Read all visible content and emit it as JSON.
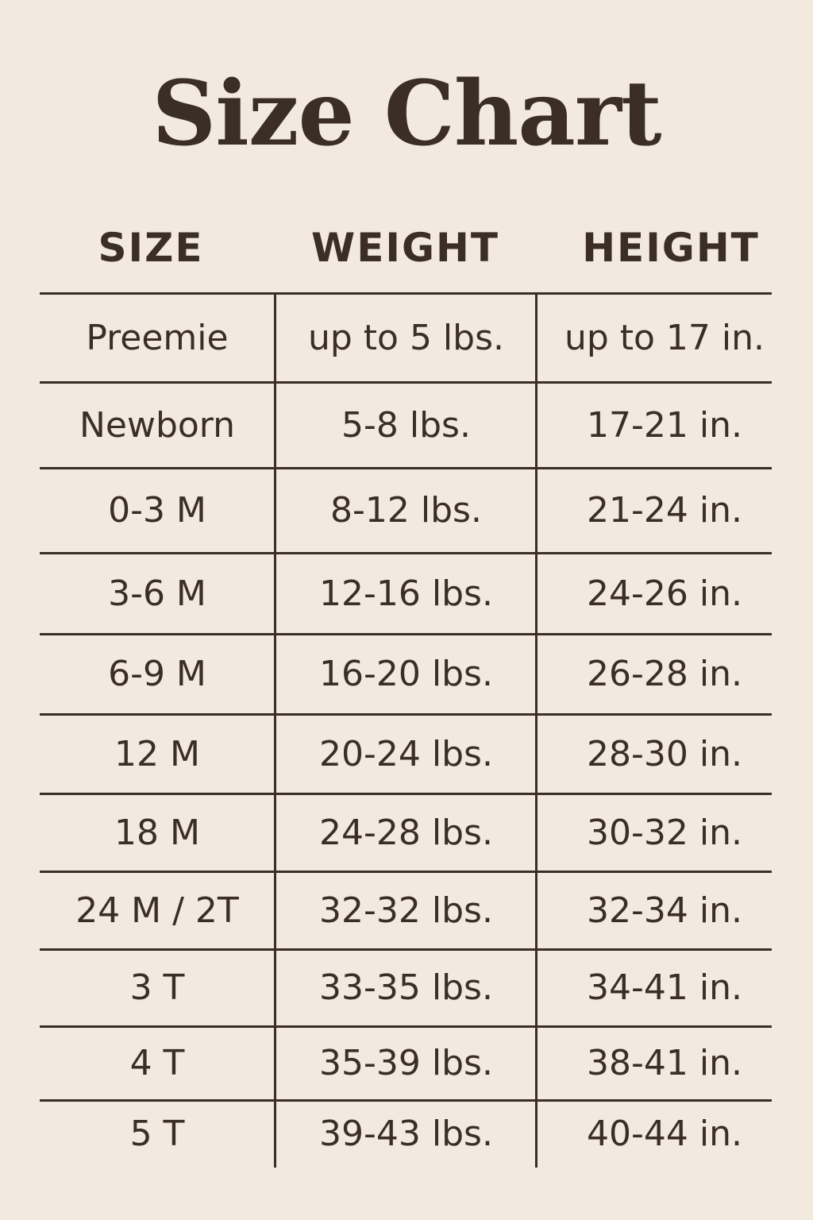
{
  "title": "Size Chart",
  "headers": [
    "SIZE",
    "WEIGHT",
    "HEIGHT"
  ],
  "rows": [
    [
      "Preemie",
      "up to 5 lbs.",
      "up to 17 in."
    ],
    [
      "Newborn",
      "5-8 lbs.",
      "17-21 in."
    ],
    [
      "0-3 M",
      "8-12 lbs.",
      "21-24 in."
    ],
    [
      "3-6 M",
      "12-16 lbs.",
      "24-26 in."
    ],
    [
      "6-9 M",
      "16-20 lbs.",
      "26-28 in."
    ],
    [
      "12 M",
      "20-24 lbs.",
      "28-30 in."
    ],
    [
      "18 M",
      "24-28 lbs.",
      "30-32 in."
    ],
    [
      "24 M / 2T",
      "32-32 lbs.",
      "32-34 in."
    ],
    [
      "3 T",
      "33-35 lbs.",
      "34-41 in."
    ],
    [
      "4 T",
      "35-39 lbs.",
      "38-41 in."
    ],
    [
      "5 T",
      "39-43 lbs.",
      "40-44 in."
    ]
  ],
  "colors": {
    "background": "#f2eadf",
    "text": "#3a2e25"
  }
}
